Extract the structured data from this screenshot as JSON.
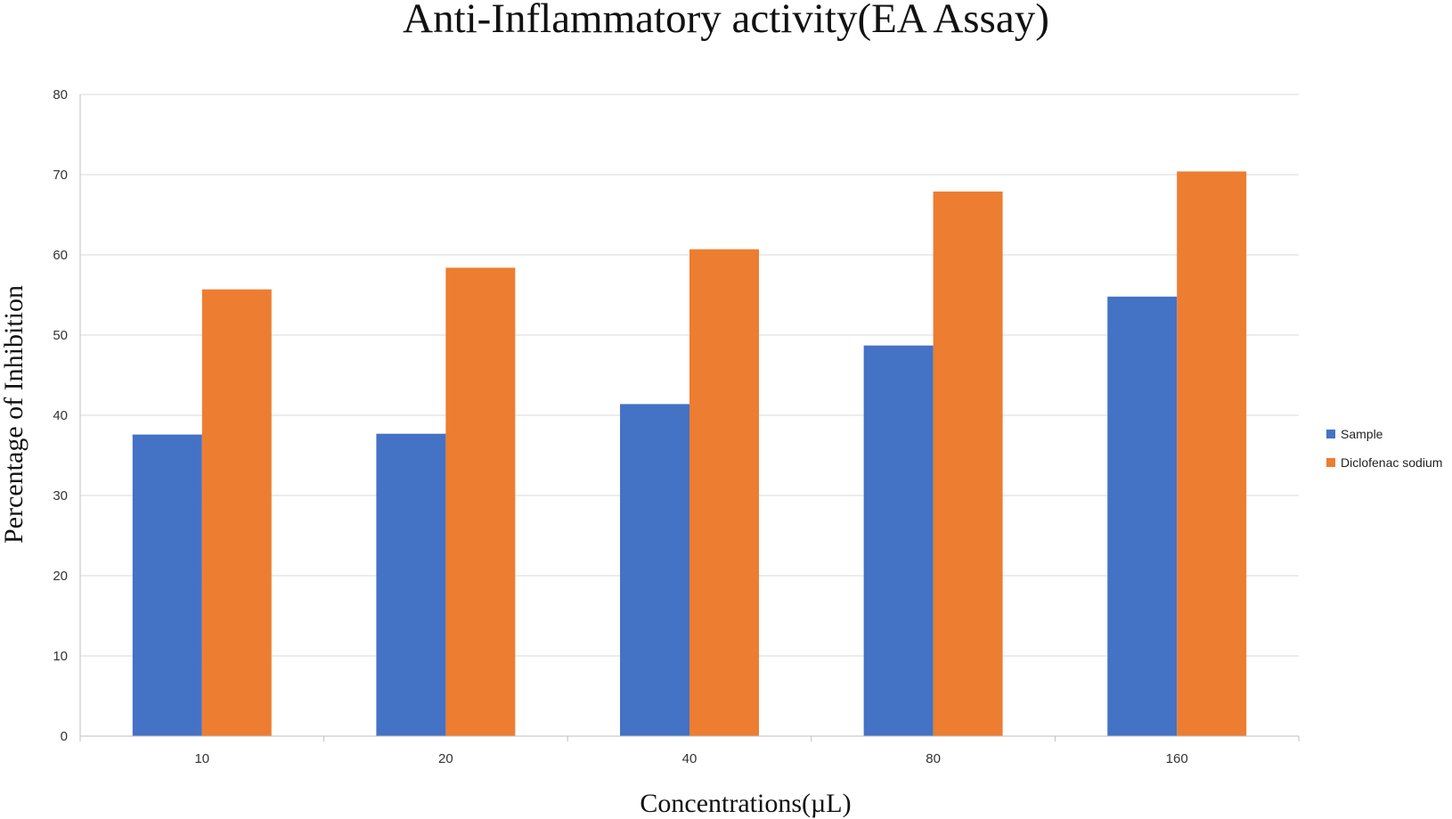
{
  "chart_data": {
    "type": "bar",
    "title": "Anti-Inflammatory activity(EA Assay)",
    "xlabel": "Concentrations(µL)",
    "ylabel": "Percentage of Inhibition",
    "categories": [
      "10",
      "20",
      "40",
      "80",
      "160"
    ],
    "series": [
      {
        "name": "Sample",
        "values": [
          37.6,
          37.7,
          41.4,
          48.7,
          54.8
        ],
        "color": "#4472c4"
      },
      {
        "name": "Diclofenac sodium",
        "values": [
          55.7,
          58.4,
          60.7,
          67.9,
          70.4
        ],
        "color": "#ed7d31"
      }
    ],
    "ylim": [
      0,
      80
    ],
    "yticks": [
      0,
      10,
      20,
      30,
      40,
      50,
      60,
      70,
      80
    ],
    "grid": true,
    "legend_position": "right"
  }
}
